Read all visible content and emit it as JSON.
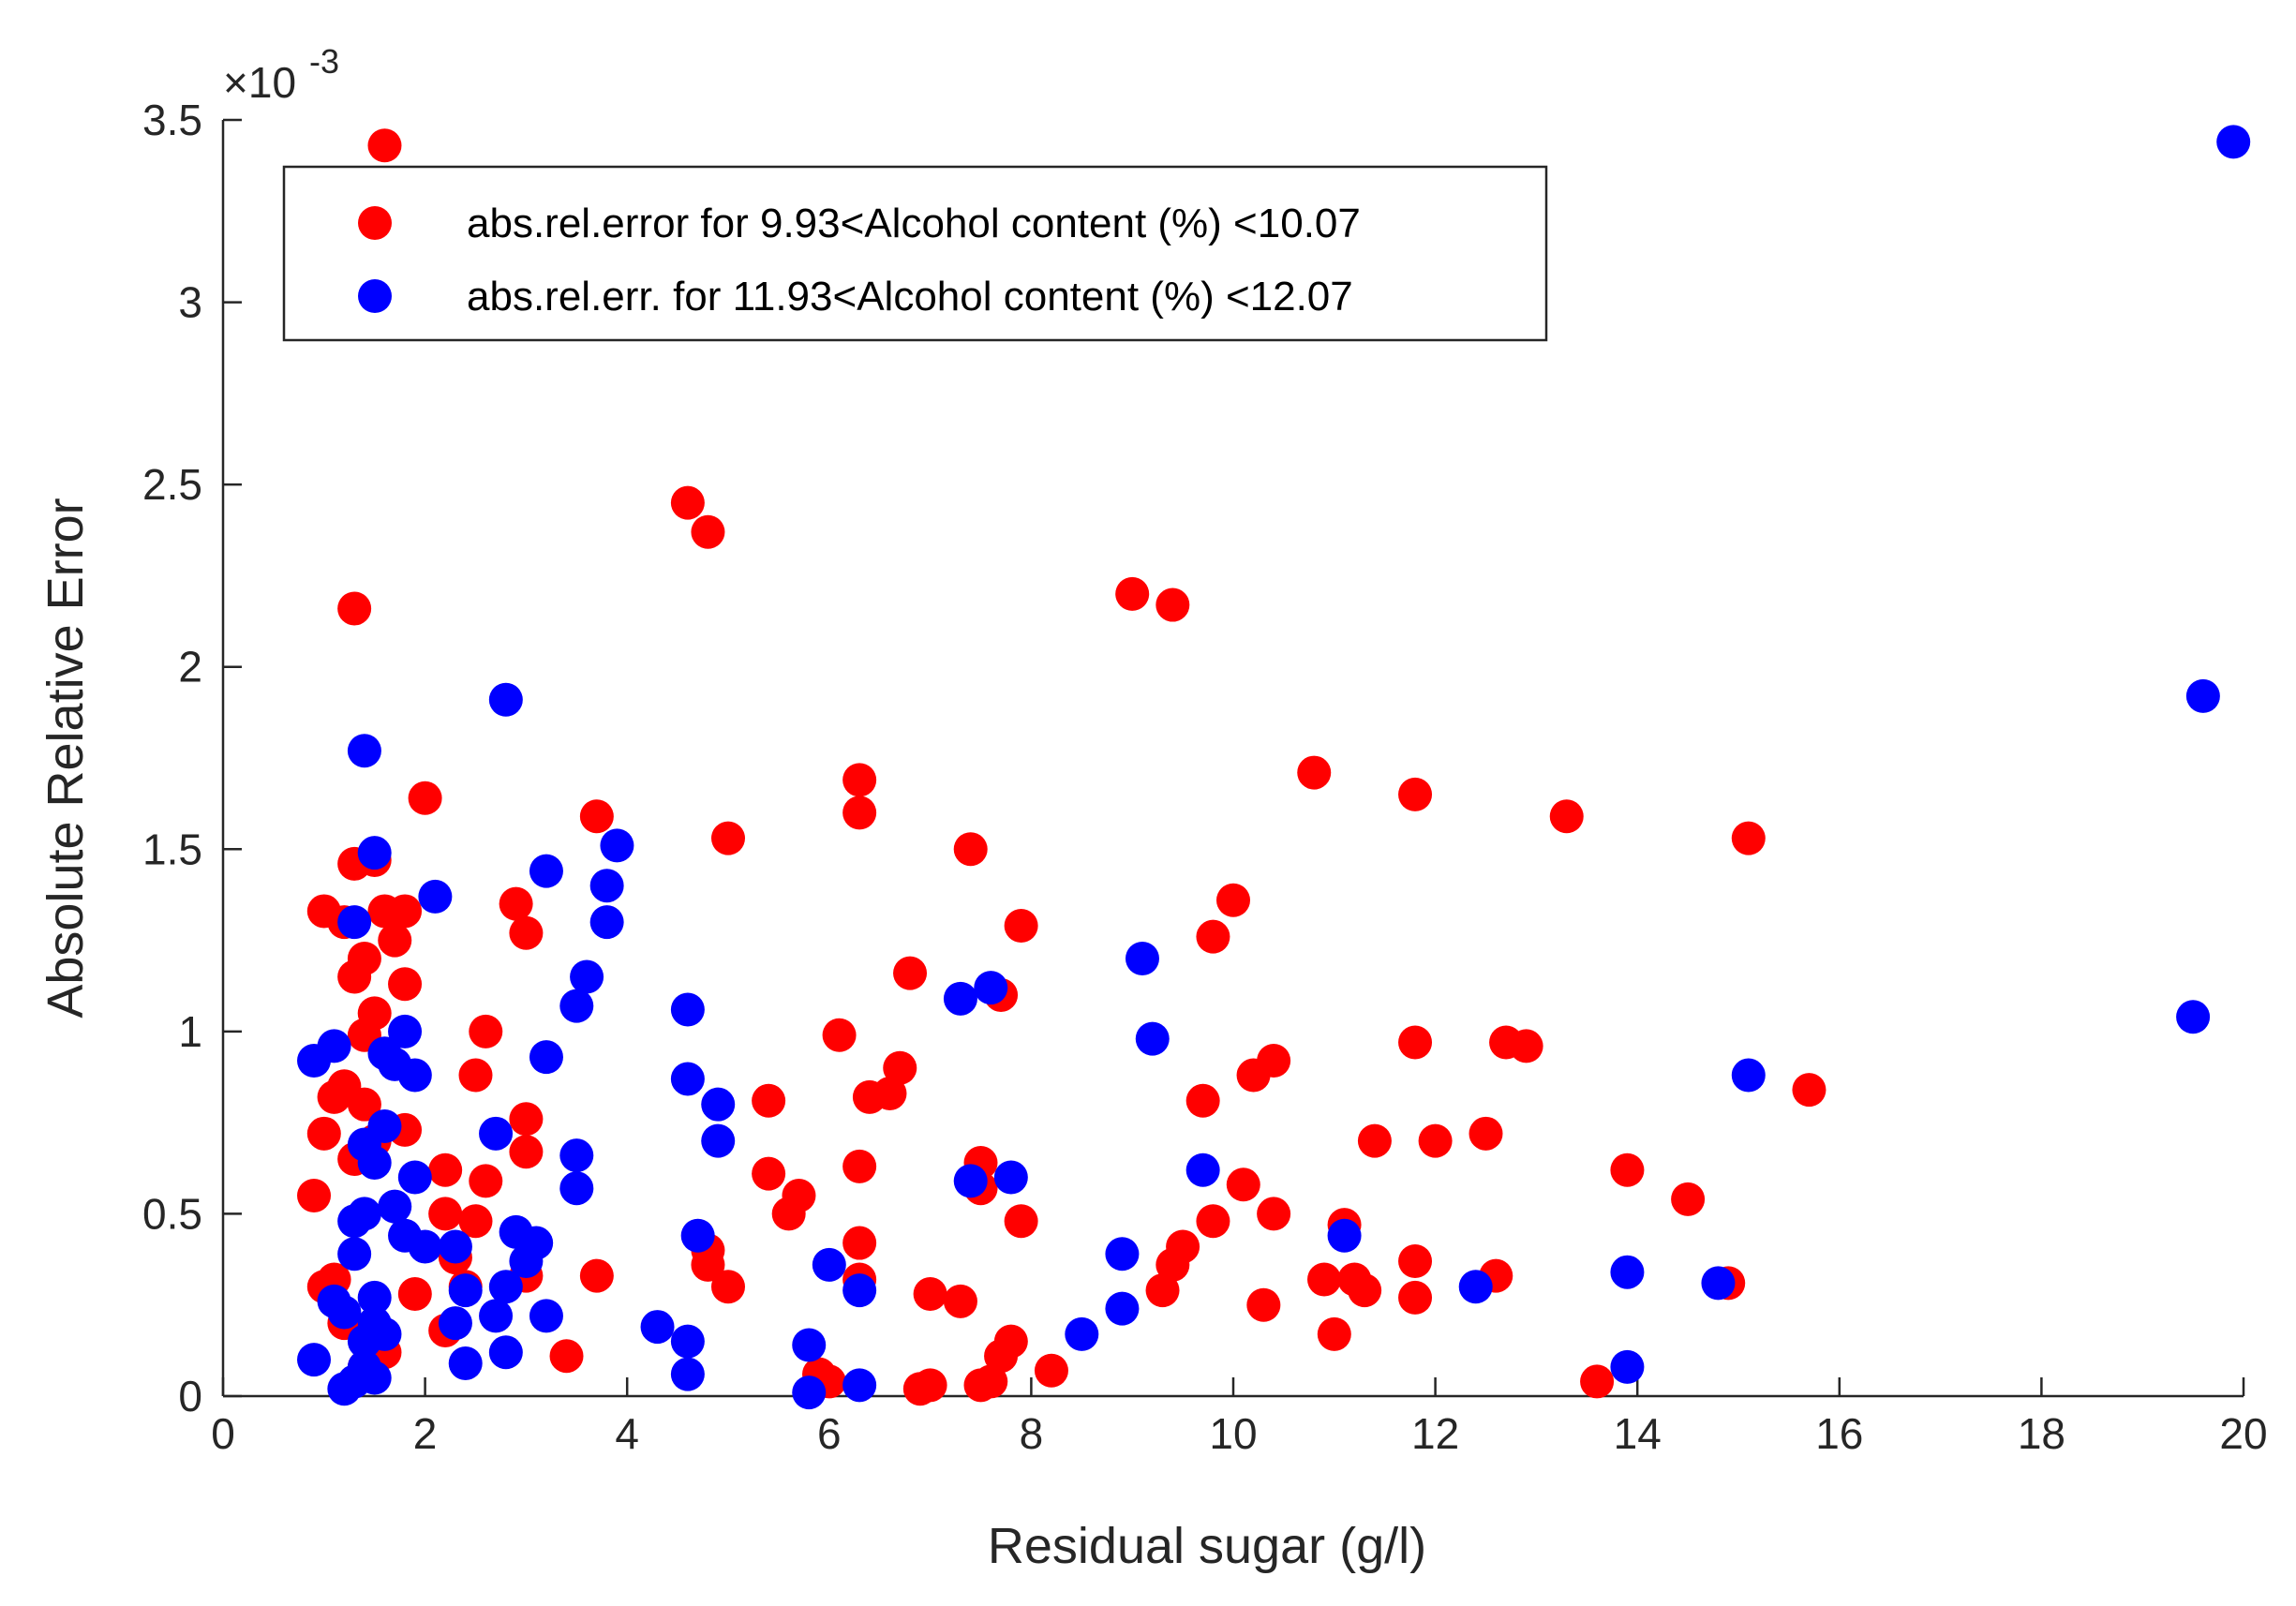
{
  "chart_data": {
    "type": "scatter",
    "xlabel": "Residual sugar (g/l)",
    "ylabel": "Absolute Relative Error",
    "y_multiplier_base": "×10",
    "y_multiplier_exp": "-3",
    "xlim": [
      0,
      20
    ],
    "ylim": [
      0,
      3.5
    ],
    "x_ticks": [
      "0",
      "2",
      "4",
      "6",
      "8",
      "10",
      "12",
      "14",
      "16",
      "18",
      "20"
    ],
    "y_ticks": [
      "0",
      "0.5",
      "1",
      "1.5",
      "2",
      "2.5",
      "3",
      "3.5"
    ],
    "grid": false,
    "legend_position": "top-left",
    "series": [
      {
        "name": "abs.rel.error for 9.93<Alcohol content (%) <10.07",
        "color": "#ff0000",
        "points": [
          [
            1.6,
            3.43
          ],
          [
            1.3,
            2.16
          ],
          [
            4.6,
            2.45
          ],
          [
            4.8,
            2.37
          ],
          [
            9.0,
            2.2
          ],
          [
            9.4,
            2.17
          ],
          [
            2.0,
            1.64
          ],
          [
            1.3,
            1.46
          ],
          [
            1.5,
            1.47
          ],
          [
            1.0,
            1.33
          ],
          [
            1.2,
            1.3
          ],
          [
            1.4,
            1.2
          ],
          [
            1.3,
            1.15
          ],
          [
            1.6,
            1.33
          ],
          [
            1.8,
            1.33
          ],
          [
            1.7,
            1.25
          ],
          [
            1.8,
            1.13
          ],
          [
            1.5,
            1.05
          ],
          [
            1.4,
            0.99
          ],
          [
            1.1,
            0.82
          ],
          [
            1.2,
            0.85
          ],
          [
            1.4,
            0.8
          ],
          [
            1.0,
            0.72
          ],
          [
            1.5,
            0.7
          ],
          [
            1.3,
            0.65
          ],
          [
            1.8,
            0.73
          ],
          [
            0.9,
            0.55
          ],
          [
            1.0,
            0.3
          ],
          [
            1.1,
            0.32
          ],
          [
            1.2,
            0.2
          ],
          [
            1.6,
            0.12
          ],
          [
            1.4,
            0.08
          ],
          [
            1.9,
            0.28
          ],
          [
            2.2,
            0.18
          ],
          [
            2.2,
            0.5
          ],
          [
            2.2,
            0.62
          ],
          [
            2.3,
            0.38
          ],
          [
            2.4,
            0.3
          ],
          [
            2.5,
            0.48
          ],
          [
            2.5,
            0.88
          ],
          [
            2.6,
            0.59
          ],
          [
            2.6,
            1.0
          ],
          [
            2.9,
            1.35
          ],
          [
            3.0,
            1.27
          ],
          [
            3.0,
            0.76
          ],
          [
            3.0,
            0.67
          ],
          [
            3.0,
            0.33
          ],
          [
            3.4,
            0.11
          ],
          [
            3.7,
            1.59
          ],
          [
            3.7,
            0.33
          ],
          [
            4.8,
            0.4
          ],
          [
            4.8,
            0.36
          ],
          [
            5.0,
            0.3
          ],
          [
            5.0,
            1.53
          ],
          [
            5.4,
            0.81
          ],
          [
            5.4,
            0.61
          ],
          [
            5.6,
            0.5
          ],
          [
            5.7,
            0.55
          ],
          [
            5.9,
            0.06
          ],
          [
            6.0,
            0.04
          ],
          [
            6.1,
            0.99
          ],
          [
            6.3,
            1.69
          ],
          [
            6.3,
            1.6
          ],
          [
            6.3,
            0.63
          ],
          [
            6.3,
            0.42
          ],
          [
            6.3,
            0.32
          ],
          [
            6.4,
            0.82
          ],
          [
            6.6,
            0.83
          ],
          [
            6.7,
            0.9
          ],
          [
            6.8,
            1.16
          ],
          [
            6.9,
            0.02
          ],
          [
            7.0,
            0.03
          ],
          [
            7.0,
            0.28
          ],
          [
            7.3,
            0.26
          ],
          [
            7.4,
            1.5
          ],
          [
            7.5,
            0.64
          ],
          [
            7.5,
            0.57
          ],
          [
            7.5,
            0.03
          ],
          [
            7.6,
            0.04
          ],
          [
            7.7,
            1.1
          ],
          [
            7.7,
            0.11
          ],
          [
            7.8,
            0.15
          ],
          [
            7.9,
            1.29
          ],
          [
            7.9,
            0.48
          ],
          [
            8.2,
            0.07
          ],
          [
            9.3,
            0.29
          ],
          [
            9.4,
            0.36
          ],
          [
            9.5,
            0.41
          ],
          [
            9.7,
            0.81
          ],
          [
            9.8,
            1.26
          ],
          [
            9.8,
            0.48
          ],
          [
            10.0,
            1.36
          ],
          [
            10.1,
            0.58
          ],
          [
            10.2,
            0.88
          ],
          [
            10.3,
            0.25
          ],
          [
            10.4,
            0.92
          ],
          [
            10.4,
            0.5
          ],
          [
            10.8,
            1.71
          ],
          [
            10.9,
            0.32
          ],
          [
            11.0,
            0.17
          ],
          [
            11.1,
            0.47
          ],
          [
            11.2,
            0.32
          ],
          [
            11.3,
            0.29
          ],
          [
            11.4,
            0.7
          ],
          [
            11.8,
            1.65
          ],
          [
            11.8,
            0.97
          ],
          [
            11.8,
            0.37
          ],
          [
            11.8,
            0.27
          ],
          [
            12.0,
            0.7
          ],
          [
            12.5,
            0.72
          ],
          [
            12.6,
            0.33
          ],
          [
            12.7,
            0.97
          ],
          [
            12.9,
            0.96
          ],
          [
            13.3,
            1.59
          ],
          [
            13.6,
            0.04
          ],
          [
            13.9,
            0.62
          ],
          [
            14.5,
            0.54
          ],
          [
            14.9,
            0.31
          ],
          [
            15.1,
            1.53
          ],
          [
            15.7,
            0.84
          ]
        ]
      },
      {
        "name": "abs.rel.err. for 11.93<Alcohol content (%) <12.07",
        "color": "#0000ff",
        "points": [
          [
            19.9,
            3.44
          ],
          [
            19.6,
            1.92
          ],
          [
            19.5,
            1.04
          ],
          [
            2.8,
            1.91
          ],
          [
            1.4,
            1.77
          ],
          [
            1.5,
            1.49
          ],
          [
            1.3,
            1.3
          ],
          [
            2.1,
            1.37
          ],
          [
            3.2,
            1.44
          ],
          [
            3.9,
            1.51
          ],
          [
            3.8,
            1.4
          ],
          [
            3.8,
            1.3
          ],
          [
            3.6,
            1.15
          ],
          [
            3.5,
            1.07
          ],
          [
            3.2,
            0.93
          ],
          [
            0.9,
            0.92
          ],
          [
            1.1,
            0.96
          ],
          [
            1.6,
            0.94
          ],
          [
            1.8,
            1.0
          ],
          [
            1.7,
            0.91
          ],
          [
            1.9,
            0.88
          ],
          [
            1.6,
            0.74
          ],
          [
            1.4,
            0.69
          ],
          [
            1.5,
            0.64
          ],
          [
            1.9,
            0.6
          ],
          [
            1.7,
            0.52
          ],
          [
            1.4,
            0.5
          ],
          [
            1.3,
            0.48
          ],
          [
            1.3,
            0.39
          ],
          [
            1.8,
            0.44
          ],
          [
            2.0,
            0.41
          ],
          [
            2.3,
            0.41
          ],
          [
            2.3,
            0.2
          ],
          [
            2.4,
            0.29
          ],
          [
            2.4,
            0.09
          ],
          [
            2.7,
            0.72
          ],
          [
            2.7,
            0.22
          ],
          [
            2.8,
            0.3
          ],
          [
            2.8,
            0.12
          ],
          [
            2.9,
            0.45
          ],
          [
            3.0,
            0.37
          ],
          [
            3.1,
            0.42
          ],
          [
            3.2,
            0.22
          ],
          [
            3.5,
            0.66
          ],
          [
            3.5,
            0.57
          ],
          [
            0.9,
            0.1
          ],
          [
            1.1,
            0.26
          ],
          [
            1.2,
            0.23
          ],
          [
            1.2,
            0.02
          ],
          [
            1.3,
            0.04
          ],
          [
            1.4,
            0.15
          ],
          [
            1.4,
            0.08
          ],
          [
            1.5,
            0.27
          ],
          [
            1.5,
            0.2
          ],
          [
            1.5,
            0.05
          ],
          [
            1.6,
            0.17
          ],
          [
            4.3,
            0.19
          ],
          [
            4.6,
            1.06
          ],
          [
            4.6,
            0.87
          ],
          [
            4.6,
            0.15
          ],
          [
            4.6,
            0.06
          ],
          [
            4.7,
            0.44
          ],
          [
            4.9,
            0.8
          ],
          [
            4.9,
            0.7
          ],
          [
            5.8,
            0.14
          ],
          [
            5.8,
            0.01
          ],
          [
            6.0,
            0.36
          ],
          [
            6.3,
            0.29
          ],
          [
            6.3,
            0.03
          ],
          [
            7.3,
            1.09
          ],
          [
            7.4,
            0.59
          ],
          [
            7.6,
            1.12
          ],
          [
            7.8,
            0.6
          ],
          [
            8.5,
            0.17
          ],
          [
            8.9,
            0.39
          ],
          [
            8.9,
            0.24
          ],
          [
            9.1,
            1.2
          ],
          [
            9.2,
            0.98
          ],
          [
            9.7,
            0.62
          ],
          [
            11.1,
            0.44
          ],
          [
            12.4,
            0.3
          ],
          [
            13.9,
            0.34
          ],
          [
            13.9,
            0.08
          ],
          [
            14.8,
            0.31
          ],
          [
            15.1,
            0.88
          ]
        ]
      }
    ]
  }
}
